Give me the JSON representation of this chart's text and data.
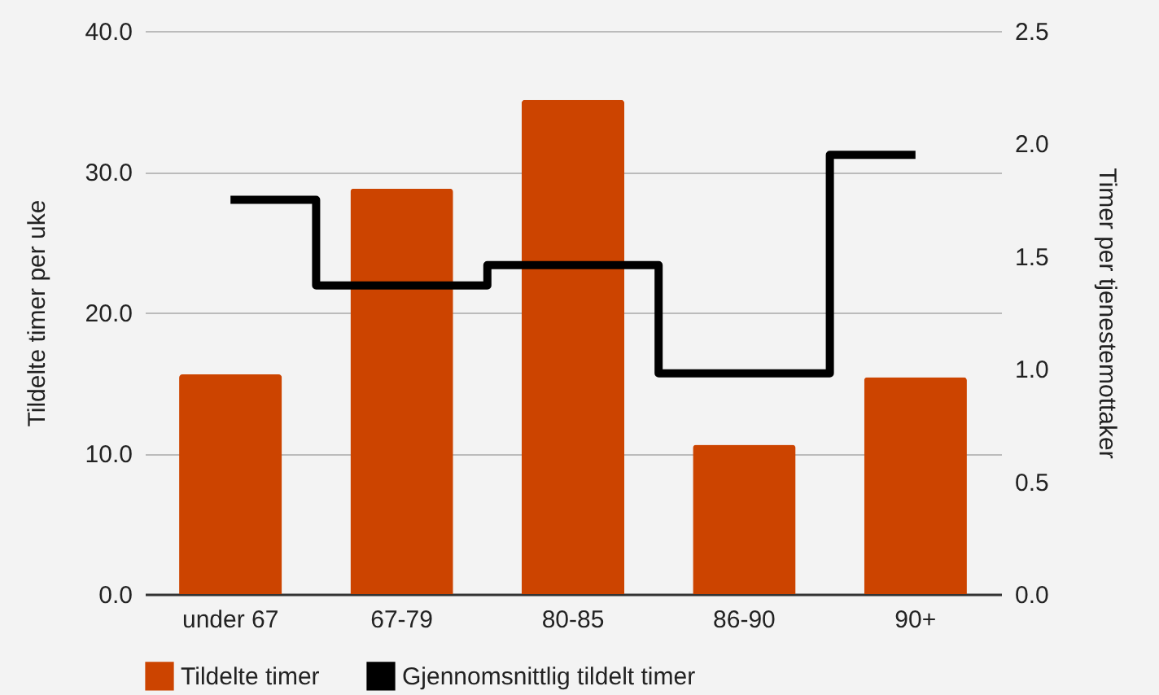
{
  "chart_data": {
    "type": "bar",
    "xlabel": null,
    "ylabel": "Tildelte timer per uke",
    "y2label": "Timer per tjenestemottaker",
    "categories": [
      "under 67",
      "67-79",
      "80-85",
      "86-90",
      "90+"
    ],
    "series": [
      {
        "name": "Tildelte timer",
        "color": "#cc4400",
        "values": [
          15.6,
          28.8,
          35.1,
          10.6,
          15.4
        ]
      },
      {
        "name": "Gjennomsnittlig tildelt timer",
        "type": "step",
        "axis": "y2",
        "color": "#000000",
        "values": [
          1.75,
          1.37,
          1.46,
          0.98,
          1.95
        ]
      }
    ],
    "ylim": [
      0,
      40
    ],
    "yticks": [
      {
        "value": 0,
        "label": "0.0"
      },
      {
        "value": 10,
        "label": "10.0"
      },
      {
        "value": 20,
        "label": "20.0"
      },
      {
        "value": 30,
        "label": "30.0"
      },
      {
        "value": 40,
        "label": "40.0"
      }
    ],
    "y2lim": [
      0,
      2.5
    ],
    "y2ticks": [
      {
        "value": 0,
        "label": "0.0"
      },
      {
        "value": 0.5,
        "label": "0.5"
      },
      {
        "value": 1,
        "label": "1.0"
      },
      {
        "value": 1.5,
        "label": "1.5"
      },
      {
        "value": 2,
        "label": "2.0"
      },
      {
        "value": 2.5,
        "label": "2.5"
      }
    ],
    "grid": "y",
    "legend": "bottom"
  }
}
